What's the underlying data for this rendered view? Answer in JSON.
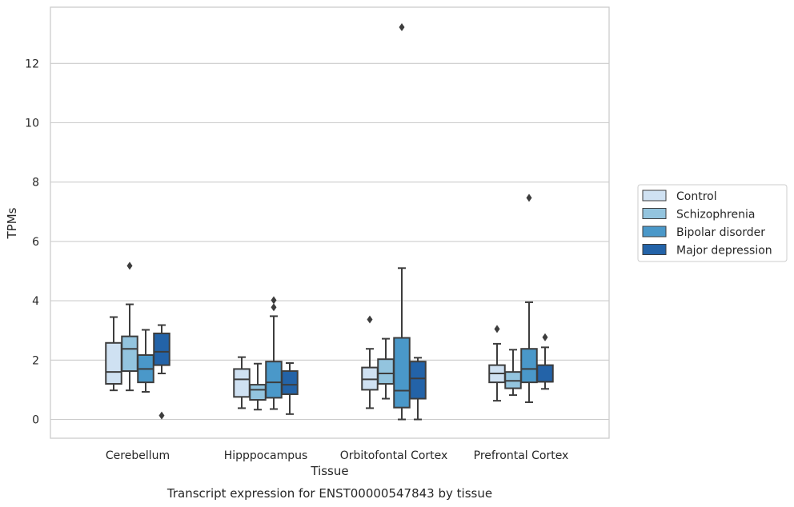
{
  "chart_data": {
    "type": "box",
    "xlabel": "Tissue",
    "ylabel": "TPMs",
    "caption": "Transcript expression for ENST00000547843 by tissue",
    "ylim": [
      -0.65,
      13.8
    ],
    "yticks": [
      0,
      2,
      4,
      6,
      8,
      10,
      12
    ],
    "grid": true,
    "legend_position": "right",
    "categories": [
      "Cerebellum",
      "Hipppocampus",
      "Orbitofontal Cortex",
      "Prefrontal Cortex"
    ],
    "series": [
      {
        "name": "Control",
        "color": "#cfe1f2",
        "boxes": [
          {
            "whislo": 0.98,
            "q1": 1.2,
            "med": 1.6,
            "q3": 2.58,
            "whishi": 3.45,
            "fliers": []
          },
          {
            "whislo": 0.38,
            "q1": 0.76,
            "med": 1.35,
            "q3": 1.7,
            "whishi": 2.1,
            "fliers": []
          },
          {
            "whislo": 0.38,
            "q1": 1.0,
            "med": 1.35,
            "q3": 1.75,
            "whishi": 2.38,
            "fliers": [
              3.37
            ]
          },
          {
            "whislo": 0.63,
            "q1": 1.25,
            "med": 1.55,
            "q3": 1.83,
            "whishi": 2.55,
            "fliers": [
              3.05
            ]
          }
        ]
      },
      {
        "name": "Schizophrenia",
        "color": "#93c4de",
        "boxes": [
          {
            "whislo": 0.98,
            "q1": 1.63,
            "med": 2.38,
            "q3": 2.8,
            "whishi": 3.88,
            "fliers": [
              5.18
            ]
          },
          {
            "whislo": 0.33,
            "q1": 0.66,
            "med": 1.0,
            "q3": 1.17,
            "whishi": 1.88,
            "fliers": []
          },
          {
            "whislo": 0.7,
            "q1": 1.2,
            "med": 1.55,
            "q3": 2.03,
            "whishi": 2.72,
            "fliers": []
          },
          {
            "whislo": 0.82,
            "q1": 1.05,
            "med": 1.3,
            "q3": 1.6,
            "whishi": 2.35,
            "fliers": []
          }
        ]
      },
      {
        "name": "Bipolar disorder",
        "color": "#4a98c9",
        "boxes": [
          {
            "whislo": 0.93,
            "q1": 1.25,
            "med": 1.7,
            "q3": 2.17,
            "whishi": 3.02,
            "fliers": []
          },
          {
            "whislo": 0.35,
            "q1": 0.73,
            "med": 1.25,
            "q3": 1.95,
            "whishi": 3.48,
            "fliers": [
              3.78,
              4.02
            ]
          },
          {
            "whislo": 0.0,
            "q1": 0.4,
            "med": 0.97,
            "q3": 2.75,
            "whishi": 5.1,
            "fliers": [
              13.22
            ]
          },
          {
            "whislo": 0.58,
            "q1": 1.25,
            "med": 1.7,
            "q3": 2.38,
            "whishi": 3.95,
            "fliers": [
              7.47
            ]
          }
        ]
      },
      {
        "name": "Major depression",
        "color": "#2363a8",
        "boxes": [
          {
            "whislo": 1.55,
            "q1": 1.83,
            "med": 2.28,
            "q3": 2.9,
            "whishi": 3.18,
            "fliers": [
              0.13
            ]
          },
          {
            "whislo": 0.18,
            "q1": 0.85,
            "med": 1.17,
            "q3": 1.63,
            "whishi": 1.9,
            "fliers": []
          },
          {
            "whislo": 0.0,
            "q1": 0.7,
            "med": 1.38,
            "q3": 1.95,
            "whishi": 2.08,
            "fliers": []
          },
          {
            "whislo": 1.03,
            "q1": 1.27,
            "med": 1.27,
            "q3": 1.83,
            "whishi": 2.43,
            "fliers": [
              2.77
            ]
          }
        ]
      }
    ]
  }
}
